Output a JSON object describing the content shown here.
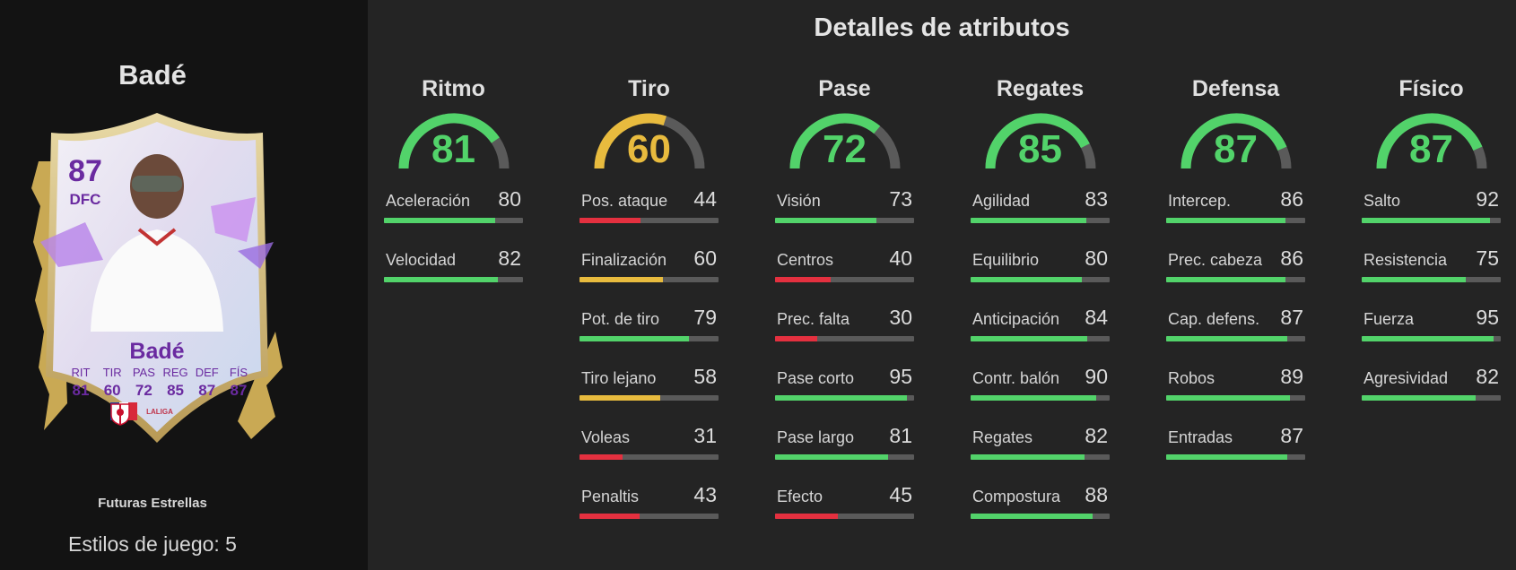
{
  "card": {
    "name": "Badé",
    "rating": "87",
    "position": "DFC",
    "version": "Futuras Estrellas",
    "playstyles_label": "Estilos de juego: 5",
    "league_text": "LALIGA",
    "stats": [
      {
        "label": "RIT",
        "value": "81"
      },
      {
        "label": "TIR",
        "value": "60"
      },
      {
        "label": "PAS",
        "value": "72"
      },
      {
        "label": "REG",
        "value": "85"
      },
      {
        "label": "DEF",
        "value": "87"
      },
      {
        "label": "FÍS",
        "value": "87"
      }
    ]
  },
  "panel_title": "Detalles de atributos",
  "colors": {
    "green": "#52d36a",
    "yellow": "#e8bb3e",
    "red": "#e4303f",
    "track": "#5a5a5a",
    "card_accent": "#6a2aa0"
  },
  "categories": [
    {
      "name": "Ritmo",
      "value": 81,
      "attributes": [
        {
          "name": "Aceleración",
          "value": 80
        },
        {
          "name": "Velocidad",
          "value": 82
        }
      ]
    },
    {
      "name": "Tiro",
      "value": 60,
      "attributes": [
        {
          "name": "Pos. ataque",
          "value": 44
        },
        {
          "name": "Finalización",
          "value": 60
        },
        {
          "name": "Pot. de tiro",
          "value": 79
        },
        {
          "name": "Tiro lejano",
          "value": 58
        },
        {
          "name": "Voleas",
          "value": 31
        },
        {
          "name": "Penaltis",
          "value": 43
        }
      ]
    },
    {
      "name": "Pase",
      "value": 72,
      "attributes": [
        {
          "name": "Visión",
          "value": 73
        },
        {
          "name": "Centros",
          "value": 40
        },
        {
          "name": "Prec. falta",
          "value": 30
        },
        {
          "name": "Pase corto",
          "value": 95
        },
        {
          "name": "Pase largo",
          "value": 81
        },
        {
          "name": "Efecto",
          "value": 45
        }
      ]
    },
    {
      "name": "Regates",
      "value": 85,
      "attributes": [
        {
          "name": "Agilidad",
          "value": 83
        },
        {
          "name": "Equilibrio",
          "value": 80
        },
        {
          "name": "Anticipación",
          "value": 84
        },
        {
          "name": "Contr. balón",
          "value": 90
        },
        {
          "name": "Regates",
          "value": 82
        },
        {
          "name": "Compostura",
          "value": 88
        }
      ]
    },
    {
      "name": "Defensa",
      "value": 87,
      "attributes": [
        {
          "name": "Intercep.",
          "value": 86
        },
        {
          "name": "Prec. cabeza",
          "value": 86
        },
        {
          "name": "Cap. defens.",
          "value": 87
        },
        {
          "name": "Robos",
          "value": 89
        },
        {
          "name": "Entradas",
          "value": 87
        }
      ]
    },
    {
      "name": "Físico",
      "value": 87,
      "attributes": [
        {
          "name": "Salto",
          "value": 92
        },
        {
          "name": "Resistencia",
          "value": 75
        },
        {
          "name": "Fuerza",
          "value": 95
        },
        {
          "name": "Agresividad",
          "value": 82
        }
      ]
    }
  ]
}
